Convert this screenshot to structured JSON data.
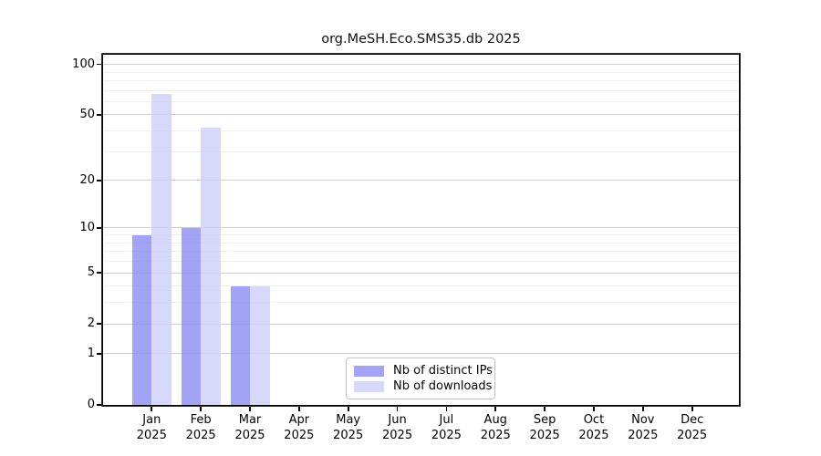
{
  "chart_data": {
    "type": "bar",
    "title": "org.MeSH.Eco.SMS35.db 2025",
    "categories": [
      "Jan",
      "Feb",
      "Mar",
      "Apr",
      "May",
      "Jun",
      "Jul",
      "Aug",
      "Sep",
      "Oct",
      "Nov",
      "Dec"
    ],
    "year_label": "2025",
    "series": [
      {
        "name": "Nb of distinct IPs",
        "color": "rgba(140,140,244,0.8)",
        "solid_color_hex": "#a3a3f6",
        "values": [
          9,
          10,
          4,
          0,
          0,
          0,
          0,
          0,
          0,
          0,
          0,
          0
        ]
      },
      {
        "name": "Nb of downloads",
        "color": "rgba(206,206,249,0.8)",
        "solid_color_hex": "#d8d8fa",
        "values": [
          67,
          42,
          4,
          0,
          0,
          0,
          0,
          0,
          0,
          0,
          0,
          0
        ]
      }
    ],
    "y_scale": "log10(1+x)",
    "y_ticks": [
      0,
      1,
      2,
      5,
      10,
      20,
      50,
      100
    ],
    "y_minor_gridlines": [
      3,
      4,
      6,
      7,
      8,
      9,
      30,
      40,
      60,
      70,
      80,
      90
    ],
    "ylim": [
      0,
      114
    ],
    "grid": true,
    "legend_position": "lower center",
    "legend_entries": [
      "Nb of distinct IPs",
      "Nb of downloads"
    ]
  },
  "style_colors": {
    "axis": "#000000",
    "grid_major": "#cfcfcf",
    "grid_minor": "#efefef",
    "background": "#ffffff",
    "legend_border": "#c3c3c3"
  }
}
